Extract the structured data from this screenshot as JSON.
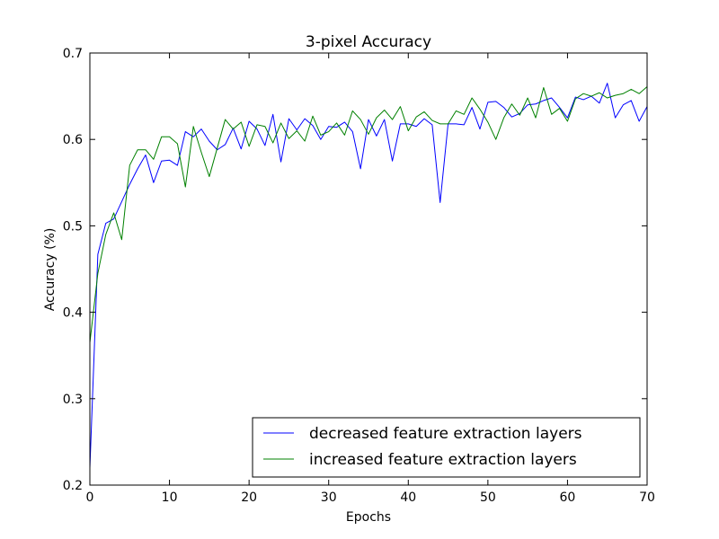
{
  "chart_data": {
    "type": "line",
    "title": "3-pixel Accuracy",
    "xlabel": "Epochs",
    "ylabel": "Accuracy (%)",
    "xlim": [
      0,
      70
    ],
    "ylim": [
      0.2,
      0.7
    ],
    "xticks": [
      "0",
      "10",
      "20",
      "30",
      "40",
      "50",
      "60",
      "70"
    ],
    "yticks": [
      "0.2",
      "0.3",
      "0.4",
      "0.5",
      "0.6",
      "0.7"
    ],
    "grid": false,
    "legend_position": "bottom-right",
    "x": [
      0,
      1,
      2,
      3,
      4,
      5,
      6,
      7,
      8,
      9,
      10,
      11,
      12,
      13,
      14,
      15,
      16,
      17,
      18,
      19,
      20,
      21,
      22,
      23,
      24,
      25,
      26,
      27,
      28,
      29,
      30,
      31,
      32,
      33,
      34,
      35,
      36,
      37,
      38,
      39,
      40,
      41,
      42,
      43,
      44,
      45,
      46,
      47,
      48,
      49,
      50,
      51,
      52,
      53,
      54,
      55,
      56,
      57,
      58,
      59,
      60,
      61,
      62,
      63,
      64,
      65,
      66,
      67,
      68,
      69,
      70
    ],
    "series": [
      {
        "name": "decreased feature extraction layers",
        "color": "#0000ff",
        "values": [
          0.22,
          0.467,
          0.503,
          0.508,
          0.528,
          0.548,
          0.566,
          0.582,
          0.55,
          0.575,
          0.576,
          0.57,
          0.609,
          0.603,
          0.612,
          0.598,
          0.588,
          0.594,
          0.613,
          0.589,
          0.621,
          0.612,
          0.593,
          0.629,
          0.574,
          0.624,
          0.611,
          0.624,
          0.616,
          0.6,
          0.615,
          0.614,
          0.62,
          0.609,
          0.566,
          0.623,
          0.604,
          0.623,
          0.575,
          0.618,
          0.618,
          0.615,
          0.624,
          0.617,
          0.527,
          0.618,
          0.618,
          0.617,
          0.637,
          0.612,
          0.643,
          0.644,
          0.637,
          0.626,
          0.63,
          0.64,
          0.641,
          0.645,
          0.648,
          0.637,
          0.625,
          0.649,
          0.646,
          0.65,
          0.642,
          0.665,
          0.625,
          0.64,
          0.645,
          0.621,
          0.638
        ]
      },
      {
        "name": "increased feature extraction layers",
        "color": "#008000",
        "values": [
          0.365,
          0.445,
          0.49,
          0.515,
          0.484,
          0.57,
          0.588,
          0.588,
          0.577,
          0.603,
          0.603,
          0.595,
          0.545,
          0.615,
          0.585,
          0.557,
          0.59,
          0.623,
          0.612,
          0.62,
          0.592,
          0.617,
          0.615,
          0.596,
          0.619,
          0.601,
          0.61,
          0.598,
          0.627,
          0.605,
          0.609,
          0.619,
          0.605,
          0.633,
          0.623,
          0.606,
          0.625,
          0.634,
          0.623,
          0.638,
          0.61,
          0.626,
          0.632,
          0.622,
          0.618,
          0.618,
          0.633,
          0.629,
          0.648,
          0.635,
          0.62,
          0.6,
          0.625,
          0.641,
          0.628,
          0.648,
          0.625,
          0.66,
          0.629,
          0.636,
          0.621,
          0.647,
          0.653,
          0.65,
          0.654,
          0.648,
          0.651,
          0.653,
          0.658,
          0.653,
          0.661
        ]
      }
    ]
  }
}
